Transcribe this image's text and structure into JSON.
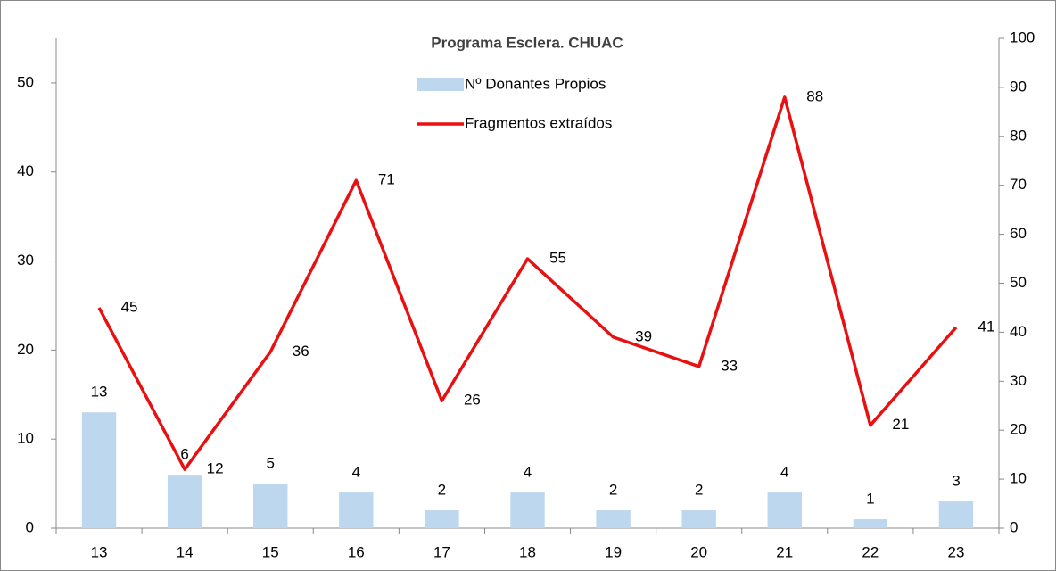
{
  "chart_data": {
    "type": "combo",
    "title": "Programa Esclera. CHUAC",
    "categories": [
      "13",
      "14",
      "15",
      "16",
      "17",
      "18",
      "19",
      "20",
      "21",
      "22",
      "23"
    ],
    "series": [
      {
        "name": "Nº Donantes Propios",
        "type": "bar",
        "axis": "y",
        "color": "#bdd7ee",
        "values": [
          13,
          6,
          5,
          4,
          2,
          4,
          2,
          2,
          4,
          1,
          3
        ]
      },
      {
        "name": "Fragmentos extraídos",
        "type": "line",
        "axis": "y2",
        "color": "#e81010",
        "values": [
          45,
          12,
          36,
          71,
          26,
          55,
          39,
          33,
          88,
          21,
          41
        ]
      }
    ],
    "ylim": [
      0,
      55
    ],
    "yticks": [
      0,
      10,
      20,
      30,
      40,
      50
    ],
    "y2lim": [
      0,
      100
    ],
    "y2ticks": [
      0,
      10,
      20,
      30,
      40,
      50,
      60,
      70,
      80,
      90,
      100
    ],
    "legend": "top"
  }
}
